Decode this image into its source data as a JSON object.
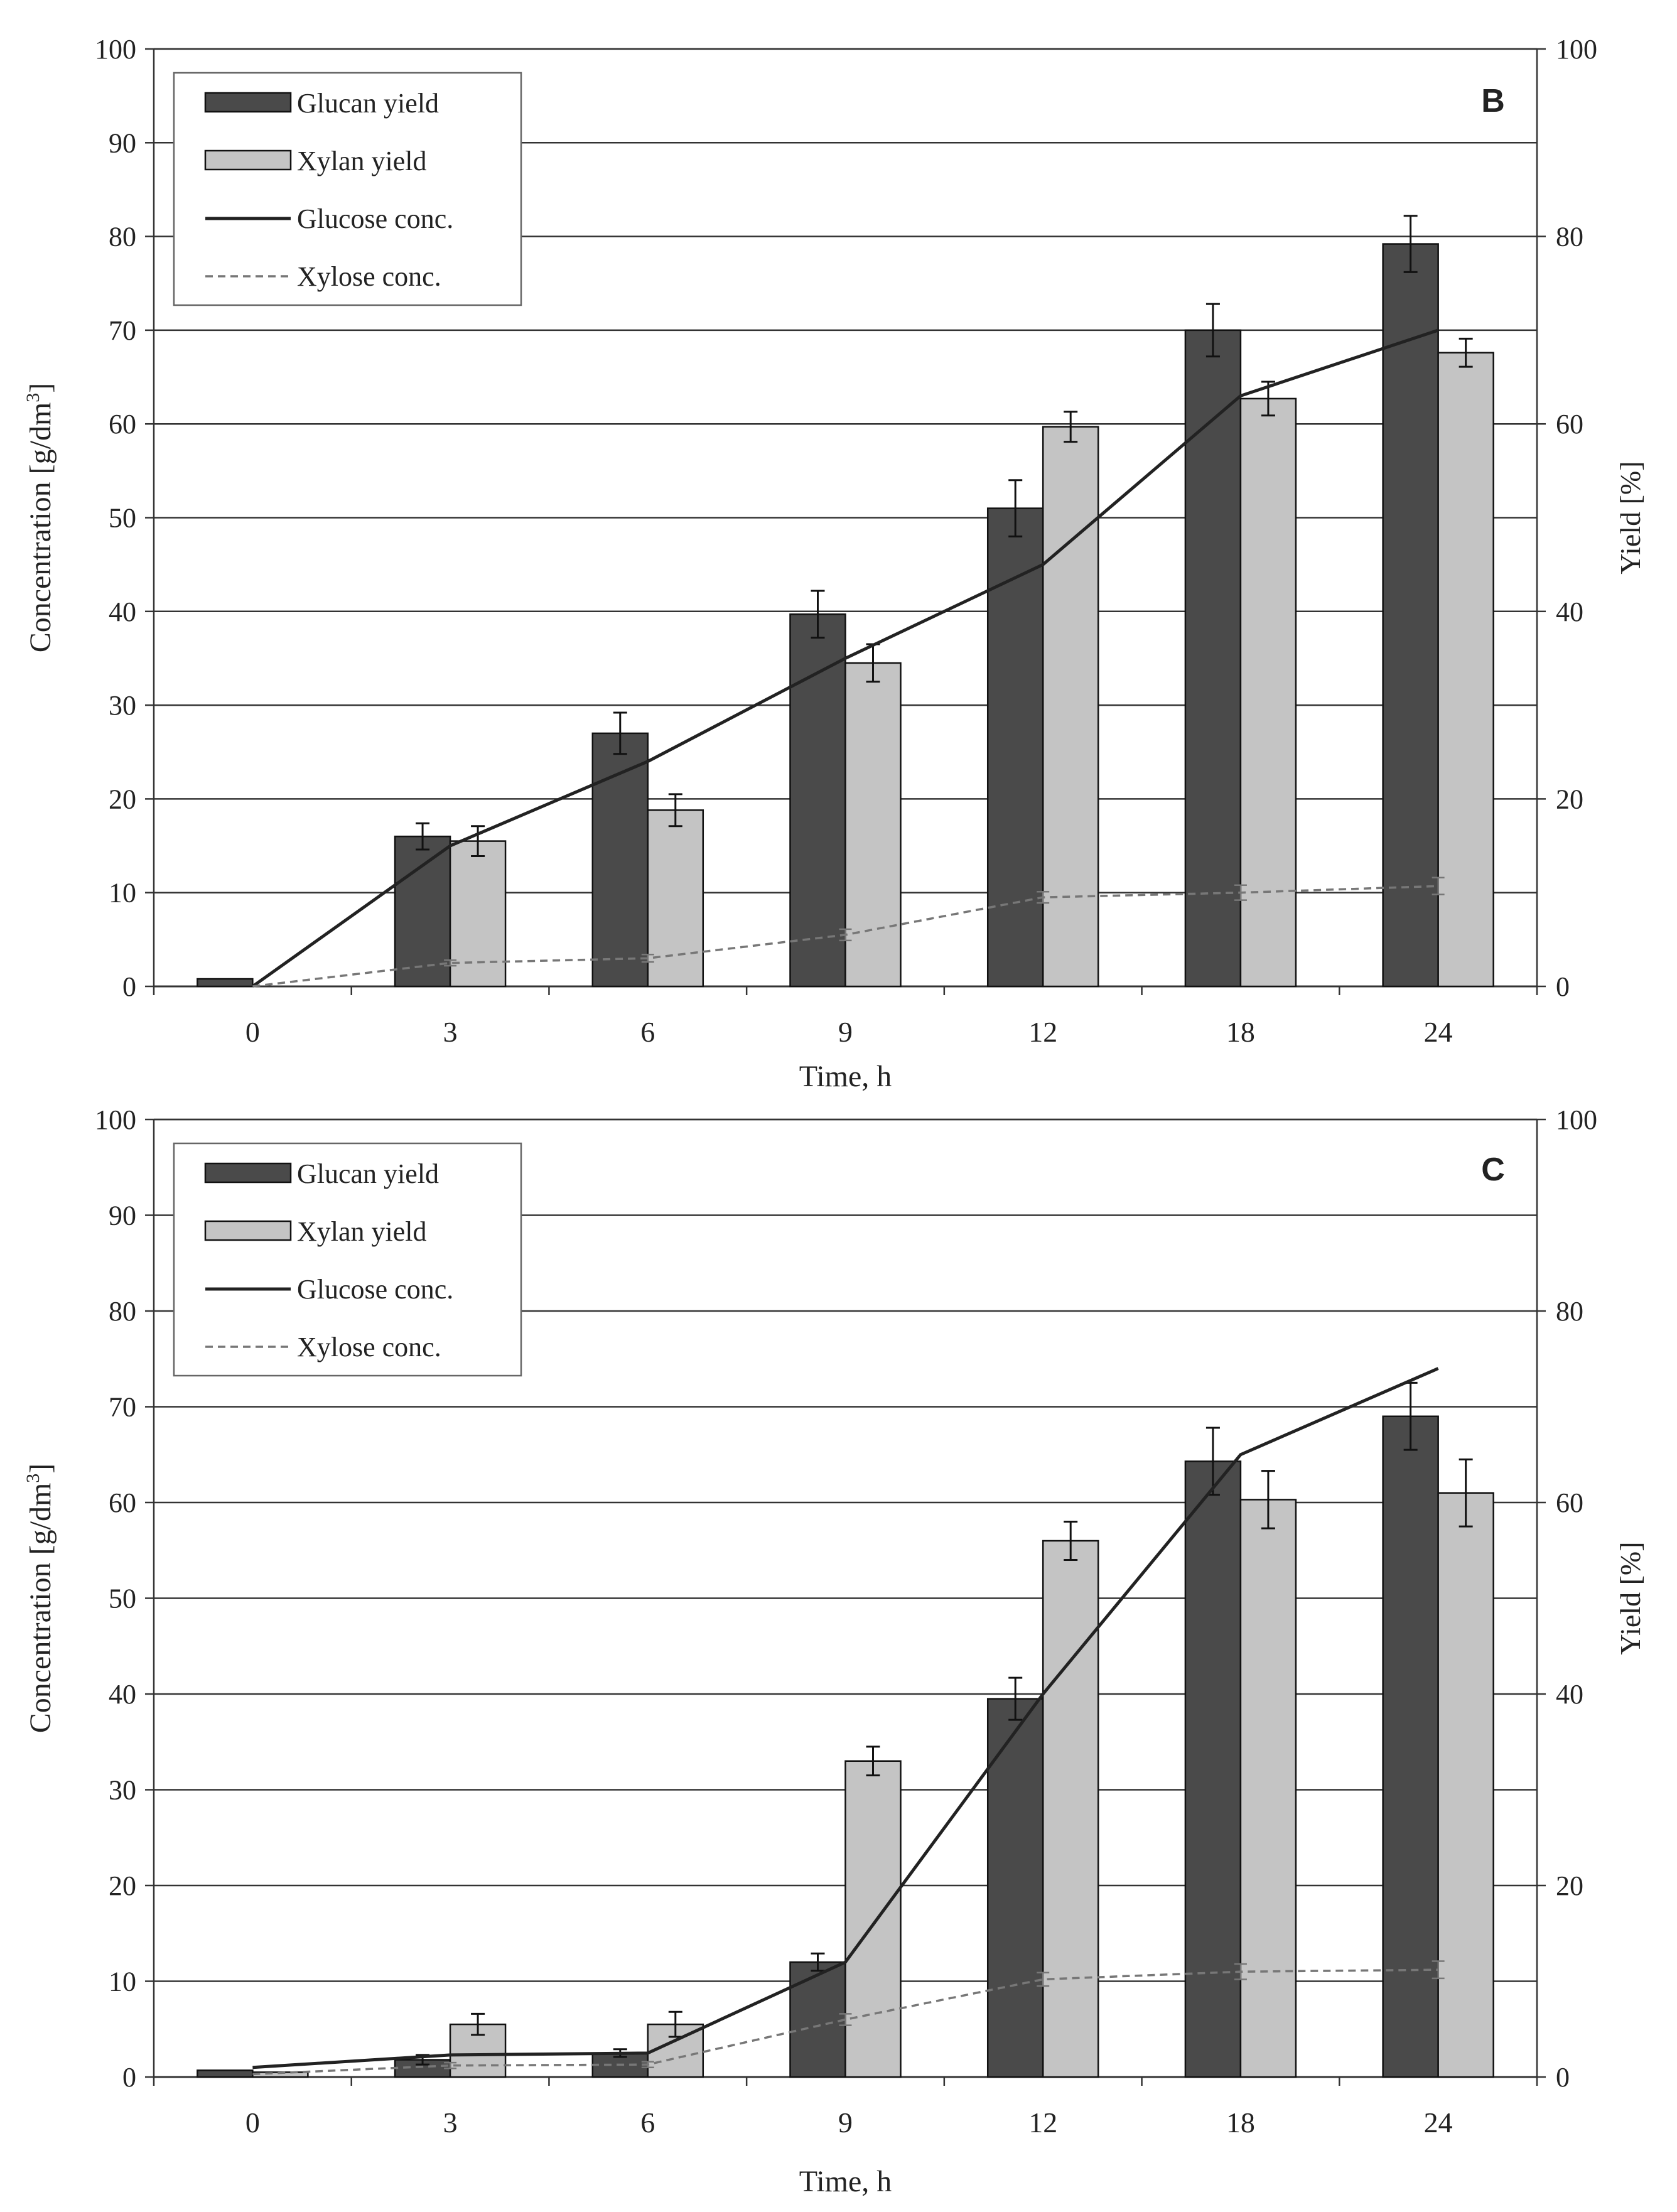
{
  "colors": {
    "glucan_bar": "#4a4a4a",
    "xylan_bar": "#c4c4c4",
    "glucose_line": "#222222",
    "xylose_line": "#777777",
    "grid": "#333333"
  },
  "chart_data": [
    {
      "type": "bar",
      "panel_label": "B",
      "categories": [
        "0",
        "3",
        "6",
        "9",
        "12",
        "18",
        "24"
      ],
      "xlabel": "Time, h",
      "ylabel_left_main": "Concentration  [g/dm",
      "ylabel_left_sup": "3",
      "ylabel_left_end": "]",
      "ylabel_right": "Yield [%]",
      "ylim_left": [
        0,
        100
      ],
      "ylim_right": [
        0,
        100
      ],
      "left_ticks": [
        "0",
        "10",
        "20",
        "30",
        "40",
        "50",
        "60",
        "70",
        "80",
        "90",
        "100"
      ],
      "right_ticks": [
        "0",
        "20",
        "40",
        "60",
        "80",
        "100"
      ],
      "legend": [
        "Glucan yield",
        "Xylan yield",
        "Glucose conc.",
        "Xylose conc."
      ],
      "legend_placement": "top-left",
      "series": [
        {
          "name": "Glucan yield",
          "kind": "bar",
          "axis": "right",
          "values": [
            0.8,
            16,
            27,
            39.7,
            51,
            70,
            79.2
          ],
          "errors": [
            0,
            1.4,
            2.2,
            2.5,
            3,
            2.8,
            3
          ]
        },
        {
          "name": "Xylan yield",
          "kind": "bar",
          "axis": "right",
          "values": [
            0,
            15.5,
            18.8,
            34.5,
            59.7,
            62.7,
            67.6
          ],
          "errors": [
            0,
            1.6,
            1.7,
            2,
            1.6,
            1.8,
            1.5
          ]
        },
        {
          "name": "Glucose conc.",
          "kind": "line",
          "axis": "left",
          "values": [
            0,
            15,
            24,
            35,
            45,
            63,
            70
          ]
        },
        {
          "name": "Xylose conc.",
          "kind": "line-dashed",
          "axis": "left",
          "values": [
            0,
            2.5,
            3,
            5.5,
            9.5,
            10,
            10.7
          ],
          "errors": [
            0,
            0.3,
            0.4,
            0.6,
            0.6,
            0.8,
            0.9
          ]
        }
      ]
    },
    {
      "type": "bar",
      "panel_label": "C",
      "categories": [
        "0",
        "3",
        "6",
        "9",
        "12",
        "18",
        "24"
      ],
      "xlabel": "Time, h",
      "ylabel_left_main": "Concentration  [g/dm",
      "ylabel_left_sup": "3",
      "ylabel_left_end": "]",
      "ylabel_right": "Yield [%]",
      "ylim_left": [
        0,
        100
      ],
      "ylim_right": [
        0,
        100
      ],
      "left_ticks": [
        "0",
        "10",
        "20",
        "30",
        "40",
        "50",
        "60",
        "70",
        "80",
        "90",
        "100"
      ],
      "right_ticks": [
        "0",
        "20",
        "40",
        "60",
        "80",
        "100"
      ],
      "legend": [
        "Glucan yield",
        "Xylan yield",
        "Glucose conc.",
        "Xylose conc."
      ],
      "legend_placement": "top-left",
      "series": [
        {
          "name": "Glucan yield",
          "kind": "bar",
          "axis": "right",
          "values": [
            0.7,
            1.8,
            2.5,
            12,
            39.5,
            64.3,
            69
          ],
          "errors": [
            0,
            0.5,
            0.4,
            0.9,
            2.2,
            3.5,
            3.5
          ]
        },
        {
          "name": "Xylan yield",
          "kind": "bar",
          "axis": "right",
          "values": [
            0.5,
            5.5,
            5.5,
            33,
            56,
            60.3,
            61
          ],
          "errors": [
            0,
            1.1,
            1.3,
            1.5,
            2,
            3,
            3.5
          ]
        },
        {
          "name": "Glucose conc.",
          "kind": "line",
          "axis": "left",
          "values": [
            1,
            2.3,
            2.5,
            12,
            40,
            65,
            74
          ]
        },
        {
          "name": "Xylose conc.",
          "kind": "line-dashed",
          "axis": "left",
          "values": [
            0.3,
            1.2,
            1.3,
            6,
            10.2,
            11,
            11.2
          ],
          "errors": [
            0,
            0.3,
            0.3,
            0.6,
            0.7,
            0.8,
            0.9
          ]
        }
      ]
    }
  ]
}
